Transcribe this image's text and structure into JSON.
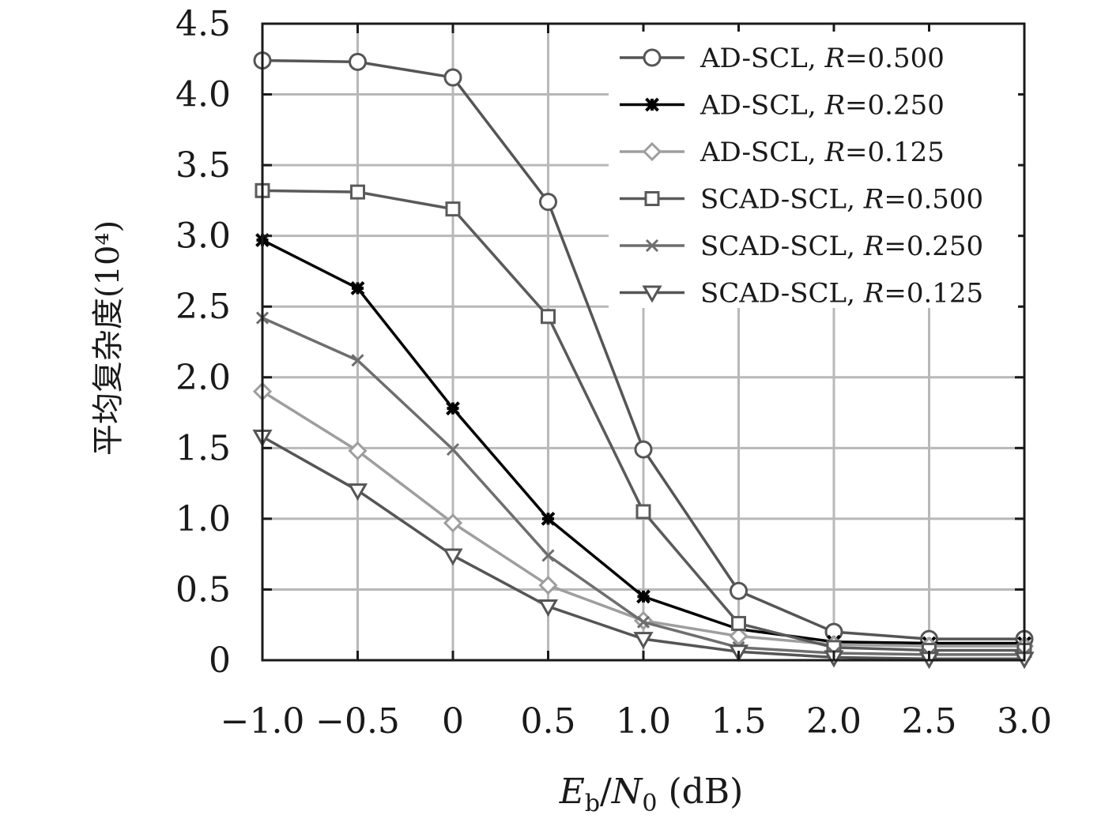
{
  "chart_data": {
    "type": "line",
    "xlabel_parts": {
      "main": "E",
      "sub": "b",
      "sep": "/",
      "main2": "N",
      "sub2": "0",
      "unit": " (dB)"
    },
    "ylabel": "平均复杂度(10⁴)",
    "x": [
      -1.0,
      -0.5,
      0,
      0.5,
      1.0,
      1.5,
      2.0,
      2.5,
      3.0
    ],
    "xticks": [
      "−1.0",
      "−0.5",
      "0",
      "0.5",
      "1.0",
      "1.5",
      "2.0",
      "2.5",
      "3.0"
    ],
    "yticks": [
      "0",
      "0.5",
      "1.0",
      "1.5",
      "2.0",
      "2.5",
      "3.0",
      "3.5",
      "4.0",
      "4.5"
    ],
    "xlim": [
      -1.0,
      3.0
    ],
    "ylim": [
      0,
      4.5
    ],
    "grid": true,
    "legend_position": "top-right",
    "series": [
      {
        "name": "AD-SCL, R=0.500",
        "legend_prefix": "AD-SCL, ",
        "legend_var": "R",
        "legend_value": "=0.500",
        "marker": "circle",
        "color": "#555555",
        "values": [
          4.24,
          4.23,
          4.12,
          3.24,
          1.49,
          0.49,
          0.2,
          0.15,
          0.15
        ]
      },
      {
        "name": "AD-SCL, R=0.250",
        "legend_prefix": "AD-SCL, ",
        "legend_var": "R",
        "legend_value": "=0.250",
        "marker": "star",
        "color": "#000000",
        "values": [
          2.97,
          2.63,
          1.78,
          1.0,
          0.45,
          0.22,
          0.13,
          0.12,
          0.12
        ]
      },
      {
        "name": "AD-SCL, R=0.125",
        "legend_prefix": "AD-SCL, ",
        "legend_var": "R",
        "legend_value": "=0.125",
        "marker": "diamond",
        "color": "#9e9e9e",
        "values": [
          1.9,
          1.48,
          0.97,
          0.53,
          0.28,
          0.17,
          0.11,
          0.1,
          0.1
        ]
      },
      {
        "name": "SCAD-SCL, R=0.500",
        "legend_prefix": "SCAD-SCL, ",
        "legend_var": "R",
        "legend_value": "=0.500",
        "marker": "square",
        "color": "#5a5a5a",
        "values": [
          3.32,
          3.31,
          3.19,
          2.43,
          1.05,
          0.26,
          0.09,
          0.07,
          0.07
        ]
      },
      {
        "name": "SCAD-SCL, R=0.250",
        "legend_prefix": "SCAD-SCL, ",
        "legend_var": "R",
        "legend_value": "=0.250",
        "marker": "x",
        "color": "#6e6e6e",
        "values": [
          2.42,
          2.12,
          1.49,
          0.74,
          0.27,
          0.09,
          0.05,
          0.04,
          0.04
        ]
      },
      {
        "name": "SCAD-SCL, R=0.125",
        "legend_prefix": "SCAD-SCL, ",
        "legend_var": "R",
        "legend_value": "=0.125",
        "marker": "triangle-down",
        "color": "#555555",
        "values": [
          1.58,
          1.2,
          0.74,
          0.38,
          0.15,
          0.06,
          0.02,
          0.01,
          0.01
        ]
      }
    ]
  }
}
